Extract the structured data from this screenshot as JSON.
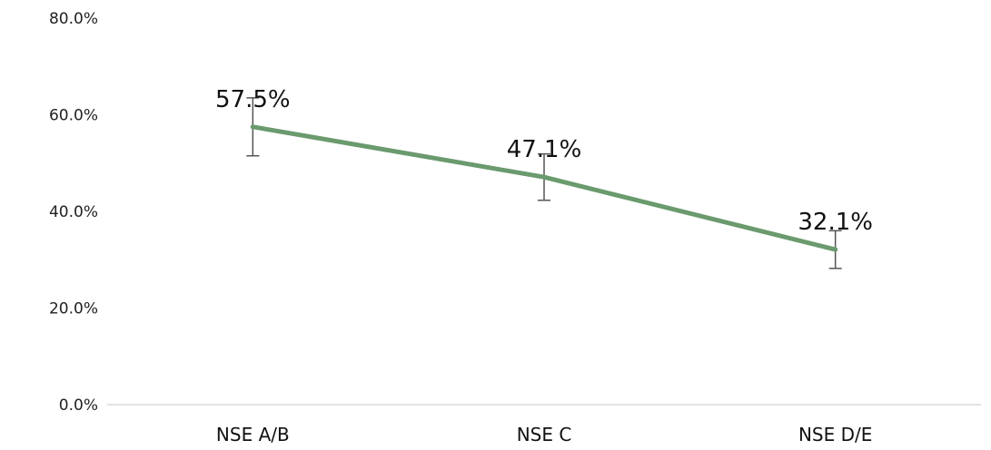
{
  "chart_data": {
    "type": "line",
    "title": "",
    "xlabel": "",
    "ylabel": "",
    "categories": [
      "NSE A/B",
      "NSE C",
      "NSE D/E"
    ],
    "series": [
      {
        "values": [
          57.5,
          47.1,
          32.1
        ],
        "error_low": [
          51.5,
          42.3,
          28.2
        ],
        "error_high": [
          63.5,
          51.9,
          36.0
        ],
        "data_labels": [
          "57.5%",
          "47.1%",
          "32.1%"
        ]
      }
    ],
    "ylim": [
      0,
      80
    ],
    "y_ticks": [
      0,
      20,
      40,
      60,
      80
    ],
    "y_tick_labels": [
      "0.0%",
      "20.0%",
      "40.0%",
      "60.0%",
      "80.0%"
    ],
    "grid": false,
    "legend": "none",
    "colors": {
      "line": "#6a9a6e",
      "error_bar": "#555555",
      "axis": "#d9d9d9"
    }
  }
}
